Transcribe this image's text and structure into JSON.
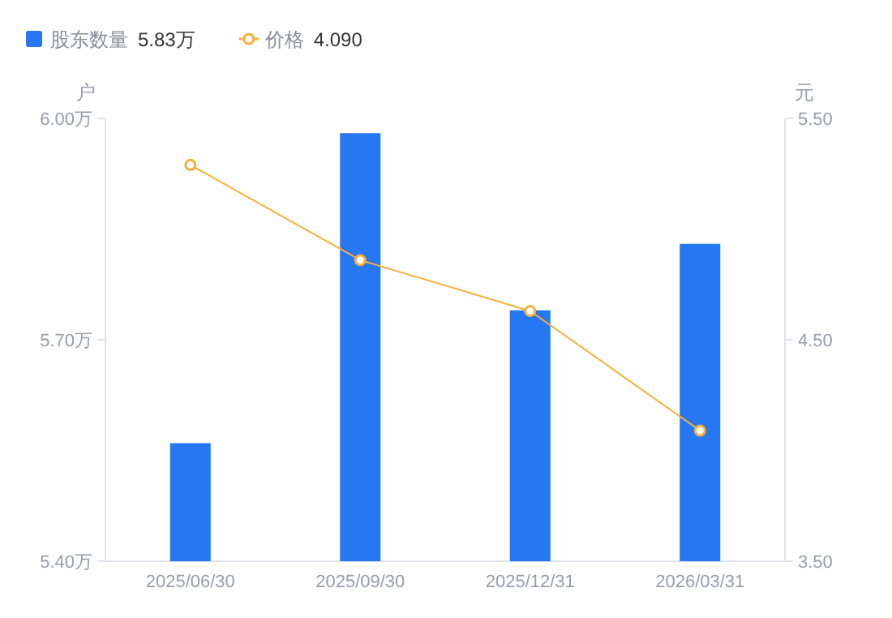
{
  "chart_data": {
    "type": "bar",
    "ylabel": "户",
    "y2label": "元",
    "categories": [
      "2025/06/30",
      "2025/09/30",
      "2025/12/31",
      "2026/03/31"
    ],
    "series": [
      {
        "name": "股东数量",
        "color": "#2577f2",
        "values": [
          5.56,
          5.98,
          5.74,
          5.83
        ]
      },
      {
        "name": "价格",
        "type": "line",
        "axis": "y2",
        "color": "#f7b03c",
        "values": [
          5.29,
          4.86,
          4.63,
          4.09
        ]
      }
    ],
    "ylim": [
      5.4,
      6.0
    ],
    "yticks": [
      {
        "value": 5.4,
        "label": "5.40万"
      },
      {
        "value": 5.7,
        "label": "5.70万"
      },
      {
        "value": 6.0,
        "label": "6.00万"
      }
    ],
    "y2lim": [
      3.5,
      5.5
    ],
    "y2ticks": [
      {
        "value": 3.5,
        "label": "3.50"
      },
      {
        "value": 4.5,
        "label": "4.50"
      },
      {
        "value": 5.5,
        "label": "5.50"
      }
    ],
    "annotations": [
      "5.83万",
      "4.090"
    ],
    "legend": "top left",
    "marker": "circle",
    "line_style": "solid",
    "grid": false
  }
}
